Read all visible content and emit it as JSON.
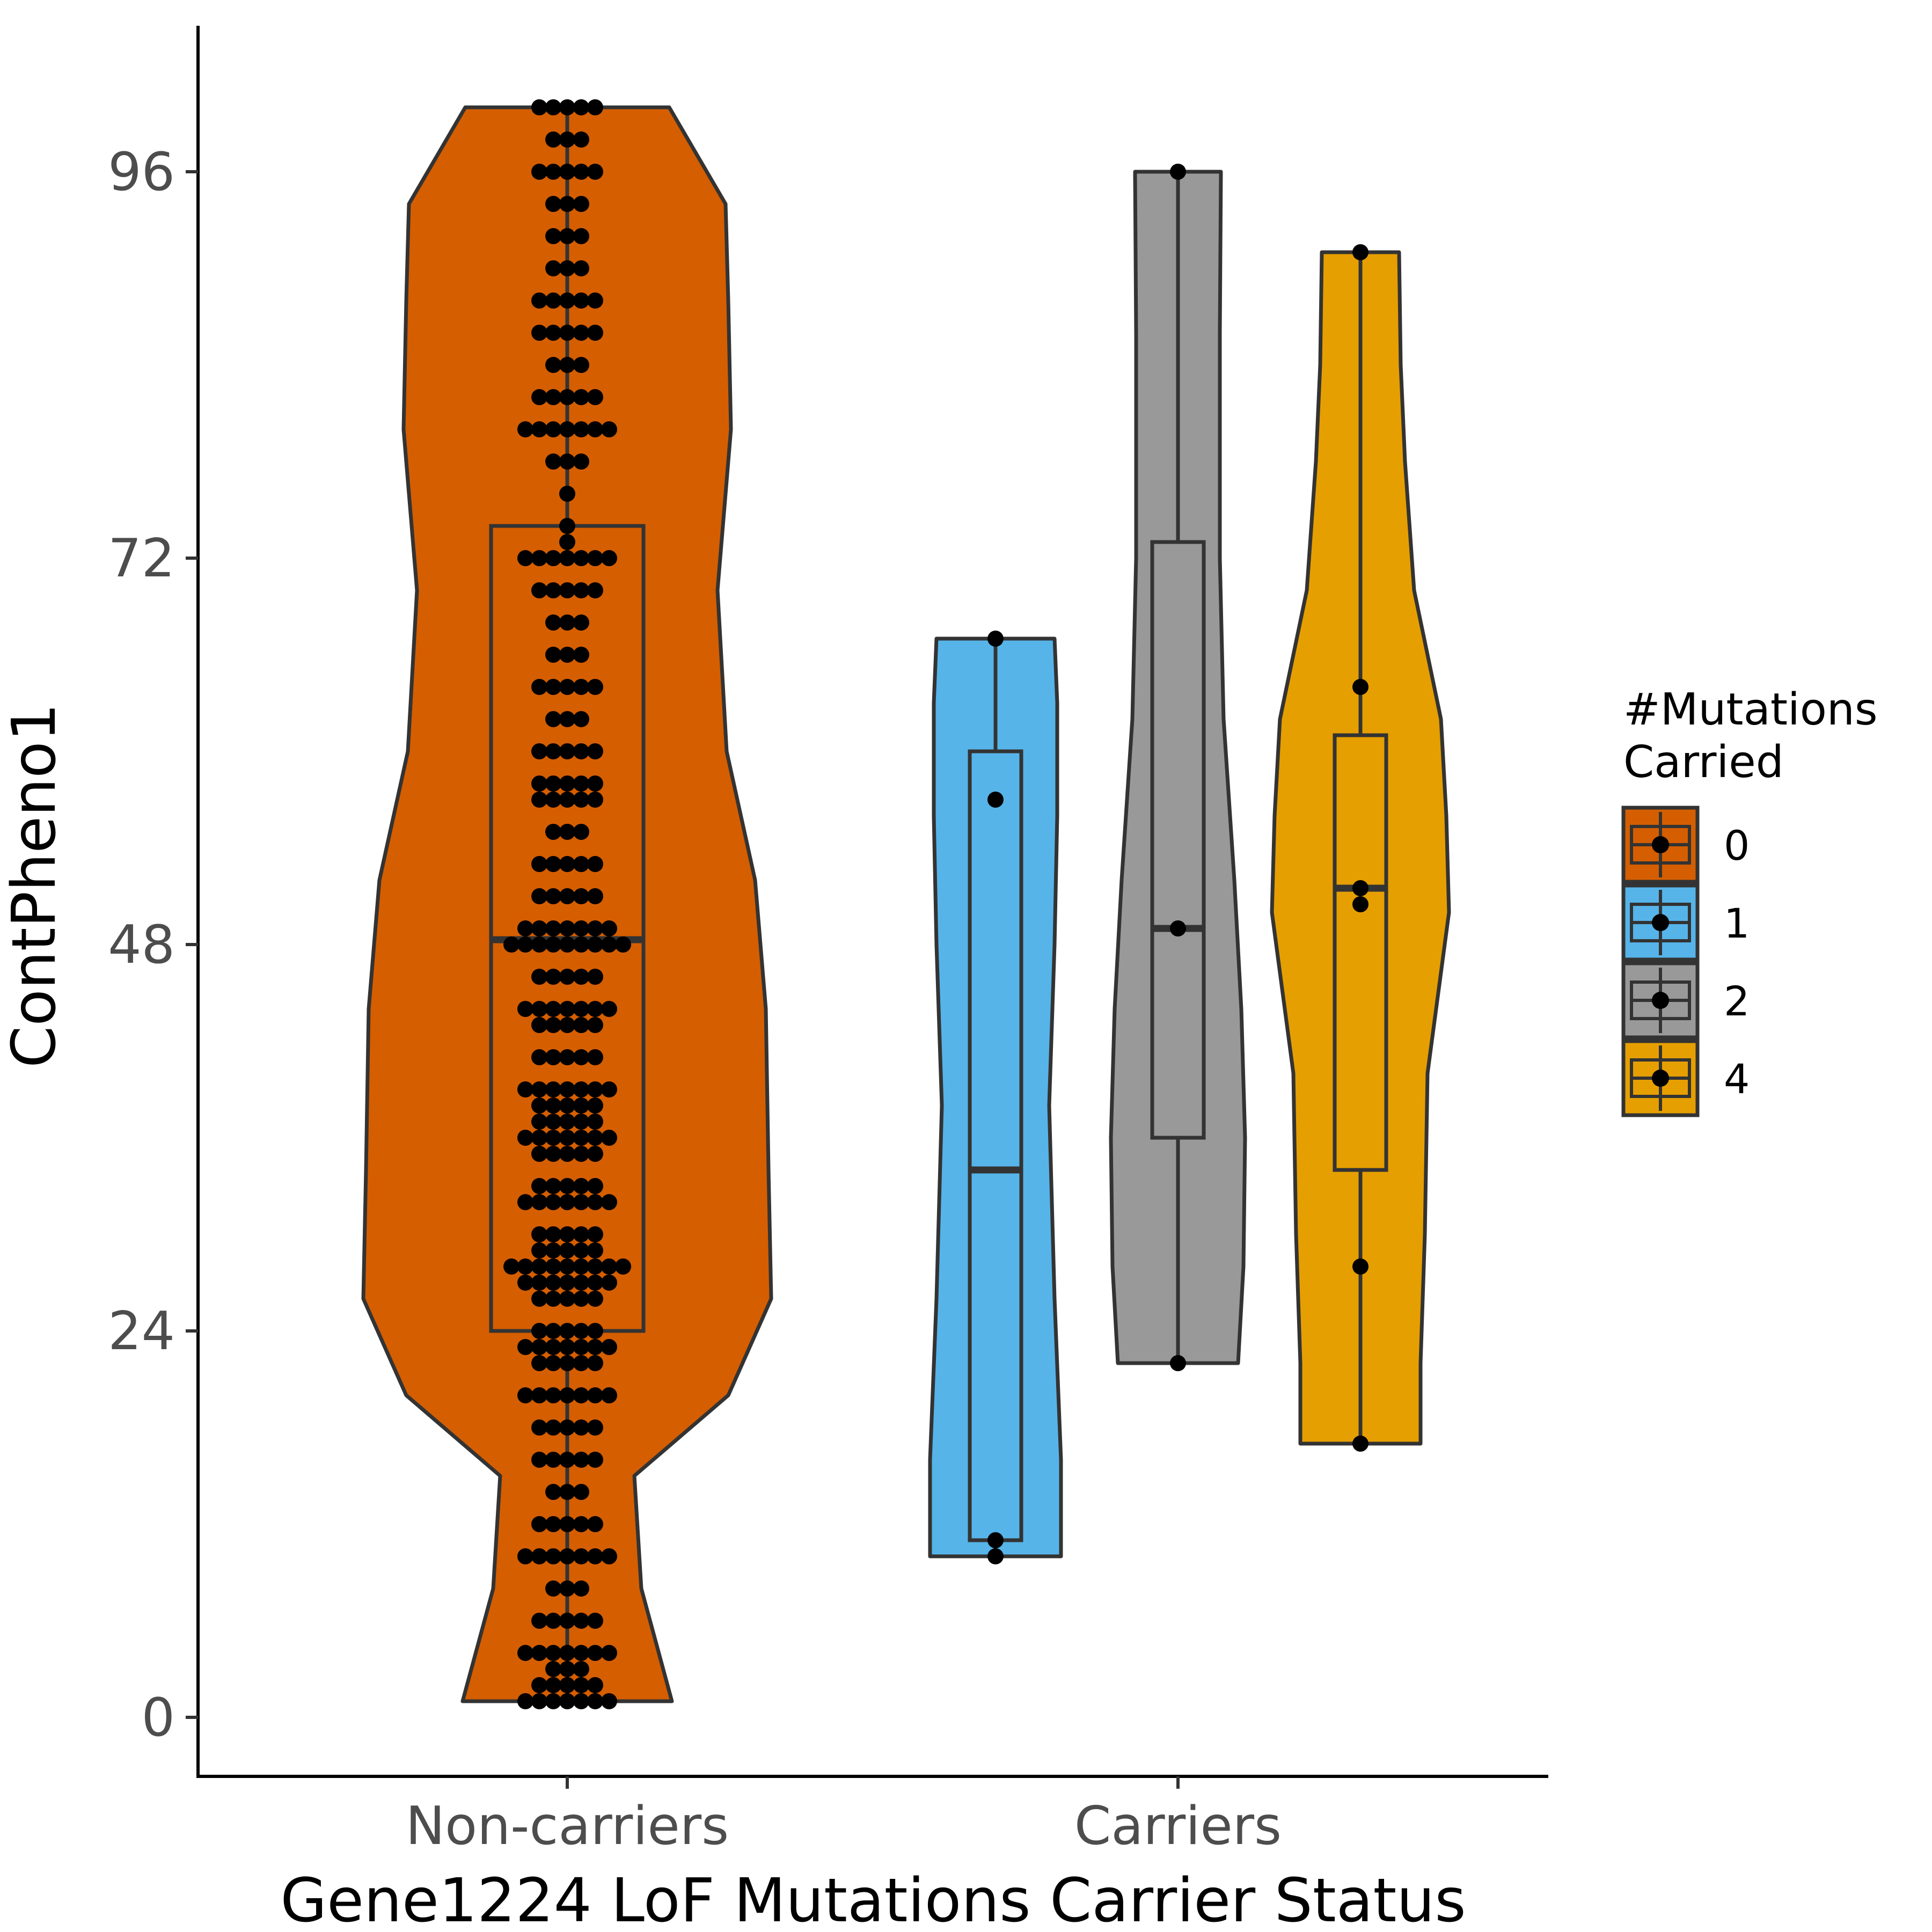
{
  "chart_data": {
    "type": "violin",
    "title": "",
    "xlabel": "Gene1224 LoF Mutations Carrier Status",
    "ylabel": "ContPheno1",
    "categories": [
      "Non-carriers",
      "Carriers"
    ],
    "y_ticks": [
      0,
      24,
      48,
      72,
      96
    ],
    "ylim": [
      -4,
      104
    ],
    "grid": false,
    "legend": {
      "title_lines": [
        "#Mutations",
        "Carried"
      ],
      "position": "right",
      "entries": [
        {
          "label": "0",
          "color": "#D55E00"
        },
        {
          "label": "1",
          "color": "#56B4E9"
        },
        {
          "label": "2",
          "color": "#999999"
        },
        {
          "label": "4",
          "color": "#E69F00"
        }
      ]
    },
    "groups": [
      {
        "mutations": "0",
        "category": "Non-carriers",
        "color": "#D55E00",
        "box": {
          "min": 1,
          "q1": 24,
          "median": 48.3,
          "q3": 74,
          "max": 100
        },
        "points": [
          [
            1,
            7
          ],
          [
            2,
            5
          ],
          [
            3,
            3
          ],
          [
            4,
            7
          ],
          [
            6,
            5
          ],
          [
            8,
            3
          ],
          [
            10,
            7
          ],
          [
            12,
            5
          ],
          [
            14,
            3
          ],
          [
            16,
            5
          ],
          [
            18,
            5
          ],
          [
            20,
            7
          ],
          [
            22,
            5
          ],
          [
            23,
            7
          ],
          [
            24,
            5
          ],
          [
            26,
            5
          ],
          [
            27,
            7
          ],
          [
            28,
            9
          ],
          [
            29,
            5
          ],
          [
            30,
            5
          ],
          [
            32,
            7
          ],
          [
            33,
            5
          ],
          [
            35,
            5
          ],
          [
            36,
            7
          ],
          [
            37,
            5
          ],
          [
            38,
            5
          ],
          [
            39,
            7
          ],
          [
            41,
            5
          ],
          [
            43,
            5
          ],
          [
            44,
            7
          ],
          [
            46,
            5
          ],
          [
            48,
            9
          ],
          [
            49,
            7
          ],
          [
            51,
            5
          ],
          [
            53,
            5
          ],
          [
            55,
            3
          ],
          [
            57,
            5
          ],
          [
            58,
            5
          ],
          [
            60,
            5
          ],
          [
            62,
            3
          ],
          [
            64,
            5
          ],
          [
            66,
            3
          ],
          [
            68,
            3
          ],
          [
            70,
            5
          ],
          [
            72,
            7
          ],
          [
            73,
            1
          ],
          [
            74,
            1
          ],
          [
            76,
            1
          ],
          [
            78,
            3
          ],
          [
            80,
            7
          ],
          [
            82,
            5
          ],
          [
            84,
            3
          ],
          [
            86,
            5
          ],
          [
            88,
            5
          ],
          [
            90,
            3
          ],
          [
            92,
            3
          ],
          [
            94,
            3
          ],
          [
            96,
            5
          ],
          [
            98,
            3
          ],
          [
            100,
            5
          ]
        ]
      },
      {
        "mutations": "1",
        "category": "Carriers",
        "color": "#56B4E9",
        "box": {
          "min": 10,
          "q1": 11,
          "median": 34,
          "q3": 60,
          "max": 67
        },
        "points": [
          [
            10
          ],
          [
            11
          ],
          [
            57
          ],
          [
            67
          ]
        ]
      },
      {
        "mutations": "2",
        "category": "Carriers",
        "color": "#999999",
        "box": {
          "min": 22,
          "q1": 36,
          "median": 49,
          "q3": 73,
          "max": 96
        },
        "points": [
          [
            22
          ],
          [
            49
          ],
          [
            96
          ]
        ]
      },
      {
        "mutations": "4",
        "category": "Carriers",
        "color": "#E69F00",
        "box": {
          "min": 17,
          "q1": 34,
          "median": 51.5,
          "q3": 61,
          "max": 91
        },
        "points": [
          [
            17
          ],
          [
            28
          ],
          [
            50.5
          ],
          [
            51.5
          ],
          [
            64
          ],
          [
            91
          ]
        ]
      }
    ]
  }
}
